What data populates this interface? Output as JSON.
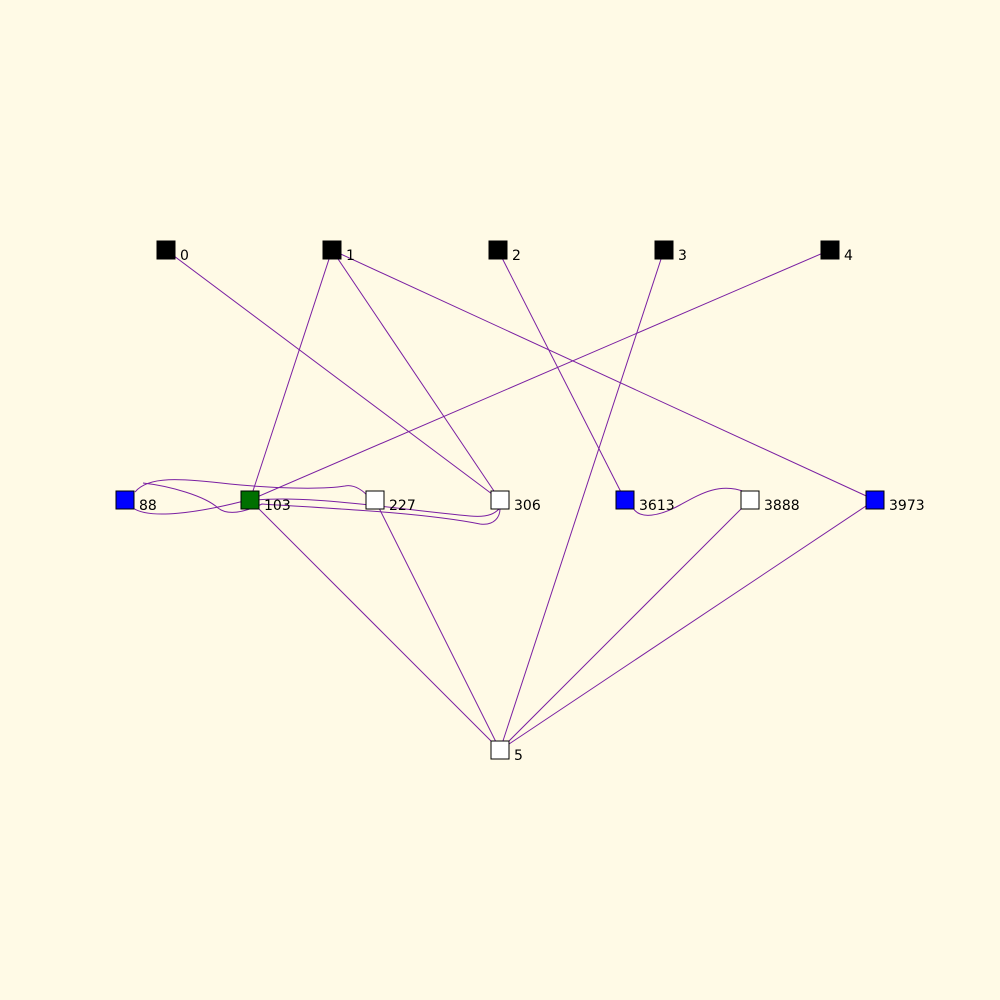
{
  "graph": {
    "background": "#FFFAE6",
    "edge_color": "#7A1FA2",
    "nodes": [
      {
        "id": "0",
        "label": "0",
        "color": "#000000"
      },
      {
        "id": "1",
        "label": "1",
        "color": "#000000"
      },
      {
        "id": "2",
        "label": "2",
        "color": "#000000"
      },
      {
        "id": "3",
        "label": "3",
        "color": "#000000"
      },
      {
        "id": "4",
        "label": "4",
        "color": "#000000"
      },
      {
        "id": "88",
        "label": "88",
        "color": "#0000FF"
      },
      {
        "id": "103",
        "label": "103",
        "color": "#007000"
      },
      {
        "id": "227",
        "label": "227",
        "color": "#FFFFFF"
      },
      {
        "id": "306",
        "label": "306",
        "color": "#FFFFFF"
      },
      {
        "id": "3613",
        "label": "3613",
        "color": "#0000FF"
      },
      {
        "id": "3888",
        "label": "3888",
        "color": "#FFFFFF"
      },
      {
        "id": "3973",
        "label": "3973",
        "color": "#0000FF"
      },
      {
        "id": "5",
        "label": "5",
        "color": "#FFFFFF"
      }
    ],
    "edges": [
      {
        "from": "0",
        "to": "306"
      },
      {
        "from": "1",
        "to": "103"
      },
      {
        "from": "1",
        "to": "306"
      },
      {
        "from": "1",
        "to": "3973"
      },
      {
        "from": "2",
        "to": "3613"
      },
      {
        "from": "3",
        "to": "5"
      },
      {
        "from": "4",
        "to": "103"
      },
      {
        "from": "88",
        "to": "227"
      },
      {
        "from": "88",
        "to": "306"
      },
      {
        "from": "103",
        "to": "306"
      },
      {
        "from": "3613",
        "to": "3888"
      },
      {
        "from": "103",
        "to": "5"
      },
      {
        "from": "227",
        "to": "5"
      },
      {
        "from": "3888",
        "to": "5"
      },
      {
        "from": "3973",
        "to": "5"
      }
    ]
  }
}
